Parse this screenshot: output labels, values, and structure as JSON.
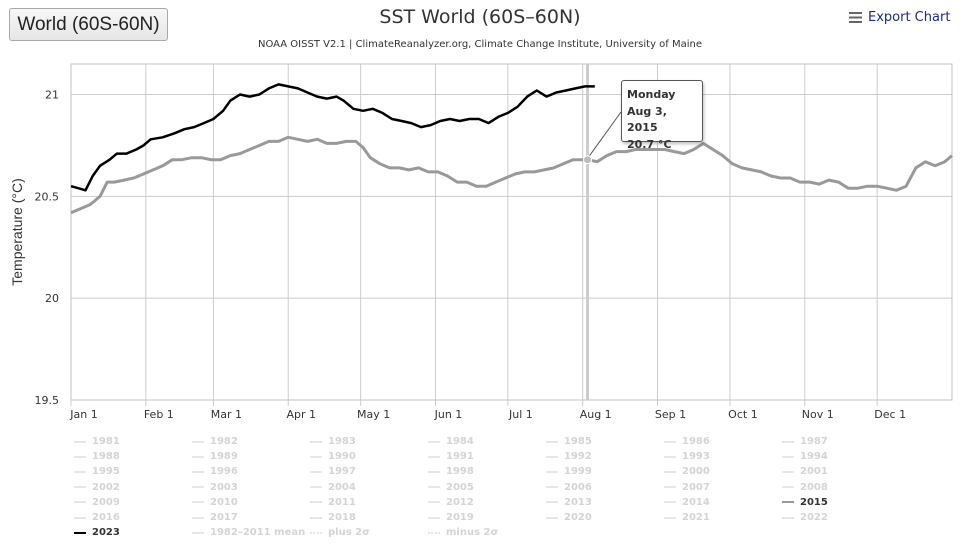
{
  "region_button": {
    "label": "World (60S-60N)"
  },
  "header": {
    "title": "SST World (60S–60N)",
    "subtitle": "NOAA OISST V2.1 | ClimateReanalyzer.org, Climate Change Institute, University of Maine",
    "export_label": "Export Chart"
  },
  "tooltip": {
    "day": "Monday",
    "date": "Aug 3, 2015",
    "value": "20.7 °C"
  },
  "chart_data": {
    "type": "line",
    "title": "SST World (60S–60N)",
    "ylabel": "Temperature (°C)",
    "xlabel": "",
    "ylim": [
      19.5,
      21.15
    ],
    "yticks": [
      19.5,
      20,
      20.5,
      21
    ],
    "ytick_labels": [
      "19.5",
      "20",
      "20.5",
      "21"
    ],
    "xticks": [
      {
        "label": "Jan 1",
        "day": 0
      },
      {
        "label": "Feb 1",
        "day": 31
      },
      {
        "label": "Mar 1",
        "day": 59
      },
      {
        "label": "Apr 1",
        "day": 90
      },
      {
        "label": "May 1",
        "day": 120
      },
      {
        "label": "Jun 1",
        "day": 151
      },
      {
        "label": "Jul 1",
        "day": 181
      },
      {
        "label": "Aug 1",
        "day": 212
      },
      {
        "label": "Sep 1",
        "day": 243
      },
      {
        "label": "Oct 1",
        "day": 273
      },
      {
        "label": "Nov 1",
        "day": 304
      },
      {
        "label": "Dec 1",
        "day": 334
      }
    ],
    "grid": true,
    "legend_position": "bottom",
    "highlight_day": 214,
    "series": [
      {
        "name": "2023",
        "color": "#000000",
        "points": [
          [
            0,
            20.55
          ],
          [
            3,
            20.54
          ],
          [
            6,
            20.53
          ],
          [
            9,
            20.6
          ],
          [
            12,
            20.65
          ],
          [
            16,
            20.68
          ],
          [
            19,
            20.71
          ],
          [
            23,
            20.71
          ],
          [
            27,
            20.73
          ],
          [
            30,
            20.75
          ],
          [
            33,
            20.78
          ],
          [
            38,
            20.79
          ],
          [
            43,
            20.81
          ],
          [
            47,
            20.83
          ],
          [
            51,
            20.84
          ],
          [
            55,
            20.86
          ],
          [
            59,
            20.88
          ],
          [
            63,
            20.92
          ],
          [
            66,
            20.97
          ],
          [
            70,
            21.0
          ],
          [
            74,
            20.99
          ],
          [
            78,
            21.0
          ],
          [
            82,
            21.03
          ],
          [
            86,
            21.05
          ],
          [
            90,
            21.04
          ],
          [
            94,
            21.03
          ],
          [
            98,
            21.01
          ],
          [
            102,
            20.99
          ],
          [
            106,
            20.98
          ],
          [
            110,
            20.99
          ],
          [
            113,
            20.97
          ],
          [
            117,
            20.93
          ],
          [
            121,
            20.92
          ],
          [
            125,
            20.93
          ],
          [
            129,
            20.91
          ],
          [
            133,
            20.88
          ],
          [
            137,
            20.87
          ],
          [
            141,
            20.86
          ],
          [
            145,
            20.84
          ],
          [
            149,
            20.85
          ],
          [
            153,
            20.87
          ],
          [
            157,
            20.88
          ],
          [
            161,
            20.87
          ],
          [
            165,
            20.88
          ],
          [
            169,
            20.88
          ],
          [
            173,
            20.86
          ],
          [
            177,
            20.89
          ],
          [
            181,
            20.91
          ],
          [
            185,
            20.94
          ],
          [
            189,
            20.99
          ],
          [
            193,
            21.02
          ],
          [
            197,
            20.99
          ],
          [
            201,
            21.01
          ],
          [
            205,
            21.02
          ],
          [
            209,
            21.03
          ],
          [
            213,
            21.04
          ],
          [
            217,
            21.04
          ]
        ]
      },
      {
        "name": "2015",
        "color": "#999999",
        "points": [
          [
            0,
            20.42
          ],
          [
            4,
            20.44
          ],
          [
            8,
            20.46
          ],
          [
            12,
            20.5
          ],
          [
            15,
            20.57
          ],
          [
            18,
            20.57
          ],
          [
            22,
            20.58
          ],
          [
            26,
            20.59
          ],
          [
            30,
            20.61
          ],
          [
            34,
            20.63
          ],
          [
            38,
            20.65
          ],
          [
            42,
            20.68
          ],
          [
            46,
            20.68
          ],
          [
            50,
            20.69
          ],
          [
            54,
            20.69
          ],
          [
            58,
            20.68
          ],
          [
            62,
            20.68
          ],
          [
            66,
            20.7
          ],
          [
            70,
            20.71
          ],
          [
            74,
            20.73
          ],
          [
            78,
            20.75
          ],
          [
            82,
            20.77
          ],
          [
            86,
            20.77
          ],
          [
            90,
            20.79
          ],
          [
            94,
            20.78
          ],
          [
            98,
            20.77
          ],
          [
            102,
            20.78
          ],
          [
            106,
            20.76
          ],
          [
            110,
            20.76
          ],
          [
            114,
            20.77
          ],
          [
            118,
            20.77
          ],
          [
            121,
            20.74
          ],
          [
            124,
            20.69
          ],
          [
            128,
            20.66
          ],
          [
            132,
            20.64
          ],
          [
            136,
            20.64
          ],
          [
            140,
            20.63
          ],
          [
            144,
            20.64
          ],
          [
            148,
            20.62
          ],
          [
            152,
            20.62
          ],
          [
            156,
            20.6
          ],
          [
            160,
            20.57
          ],
          [
            164,
            20.57
          ],
          [
            168,
            20.55
          ],
          [
            172,
            20.55
          ],
          [
            176,
            20.57
          ],
          [
            180,
            20.59
          ],
          [
            184,
            20.61
          ],
          [
            188,
            20.62
          ],
          [
            192,
            20.62
          ],
          [
            196,
            20.63
          ],
          [
            200,
            20.64
          ],
          [
            204,
            20.66
          ],
          [
            208,
            20.68
          ],
          [
            212,
            20.68
          ],
          [
            214,
            20.68
          ],
          [
            218,
            20.67
          ],
          [
            222,
            20.7
          ],
          [
            226,
            20.72
          ],
          [
            230,
            20.72
          ],
          [
            234,
            20.73
          ],
          [
            238,
            20.73
          ],
          [
            242,
            20.73
          ],
          [
            246,
            20.73
          ],
          [
            250,
            20.72
          ],
          [
            254,
            20.71
          ],
          [
            258,
            20.73
          ],
          [
            262,
            20.76
          ],
          [
            266,
            20.73
          ],
          [
            270,
            20.7
          ],
          [
            274,
            20.66
          ],
          [
            278,
            20.64
          ],
          [
            282,
            20.63
          ],
          [
            286,
            20.62
          ],
          [
            290,
            20.6
          ],
          [
            294,
            20.59
          ],
          [
            298,
            20.59
          ],
          [
            302,
            20.57
          ],
          [
            306,
            20.57
          ],
          [
            310,
            20.56
          ],
          [
            314,
            20.58
          ],
          [
            318,
            20.57
          ],
          [
            322,
            20.54
          ],
          [
            326,
            20.54
          ],
          [
            330,
            20.55
          ],
          [
            334,
            20.55
          ],
          [
            338,
            20.54
          ],
          [
            342,
            20.53
          ],
          [
            346,
            20.55
          ],
          [
            350,
            20.64
          ],
          [
            354,
            20.67
          ],
          [
            358,
            20.65
          ],
          [
            362,
            20.67
          ],
          [
            365,
            20.7
          ]
        ]
      }
    ]
  },
  "legend": {
    "items": [
      {
        "label": "1981",
        "style": "solid",
        "active": false
      },
      {
        "label": "1982",
        "style": "solid",
        "active": false
      },
      {
        "label": "1983",
        "style": "solid",
        "active": false
      },
      {
        "label": "1984",
        "style": "solid",
        "active": false
      },
      {
        "label": "1985",
        "style": "solid",
        "active": false
      },
      {
        "label": "1986",
        "style": "solid",
        "active": false
      },
      {
        "label": "1987",
        "style": "solid",
        "active": false
      },
      {
        "label": "1988",
        "style": "solid",
        "active": false
      },
      {
        "label": "1989",
        "style": "solid",
        "active": false
      },
      {
        "label": "1990",
        "style": "solid",
        "active": false
      },
      {
        "label": "1991",
        "style": "solid",
        "active": false
      },
      {
        "label": "1992",
        "style": "solid",
        "active": false
      },
      {
        "label": "1993",
        "style": "solid",
        "active": false
      },
      {
        "label": "1994",
        "style": "solid",
        "active": false
      },
      {
        "label": "1995",
        "style": "solid",
        "active": false
      },
      {
        "label": "1996",
        "style": "solid",
        "active": false
      },
      {
        "label": "1997",
        "style": "solid",
        "active": false
      },
      {
        "label": "1998",
        "style": "solid",
        "active": false
      },
      {
        "label": "1999",
        "style": "solid",
        "active": false
      },
      {
        "label": "2000",
        "style": "solid",
        "active": false
      },
      {
        "label": "2001",
        "style": "solid",
        "active": false
      },
      {
        "label": "2002",
        "style": "solid",
        "active": false
      },
      {
        "label": "2003",
        "style": "solid",
        "active": false
      },
      {
        "label": "2004",
        "style": "solid",
        "active": false
      },
      {
        "label": "2005",
        "style": "solid",
        "active": false
      },
      {
        "label": "2006",
        "style": "solid",
        "active": false
      },
      {
        "label": "2007",
        "style": "solid",
        "active": false
      },
      {
        "label": "2008",
        "style": "solid",
        "active": false
      },
      {
        "label": "2009",
        "style": "solid",
        "active": false
      },
      {
        "label": "2010",
        "style": "solid",
        "active": false
      },
      {
        "label": "2011",
        "style": "solid",
        "active": false
      },
      {
        "label": "2012",
        "style": "solid",
        "active": false
      },
      {
        "label": "2013",
        "style": "solid",
        "active": false
      },
      {
        "label": "2014",
        "style": "solid",
        "active": false
      },
      {
        "label": "2015",
        "style": "solid",
        "active": true,
        "color": "#999999"
      },
      {
        "label": "2016",
        "style": "solid",
        "active": false
      },
      {
        "label": "2017",
        "style": "solid",
        "active": false
      },
      {
        "label": "2018",
        "style": "solid",
        "active": false
      },
      {
        "label": "2019",
        "style": "solid",
        "active": false
      },
      {
        "label": "2020",
        "style": "solid",
        "active": false
      },
      {
        "label": "2021",
        "style": "solid",
        "active": false
      },
      {
        "label": "2022",
        "style": "solid",
        "active": false
      },
      {
        "label": "2023",
        "style": "solid",
        "active": true,
        "color": "#000000"
      },
      {
        "label": "1982–2011 mean",
        "style": "dash",
        "active": false
      },
      {
        "label": "plus 2σ",
        "style": "dashdot",
        "active": false
      },
      {
        "label": "minus 2σ",
        "style": "dashdot",
        "active": false
      }
    ]
  }
}
